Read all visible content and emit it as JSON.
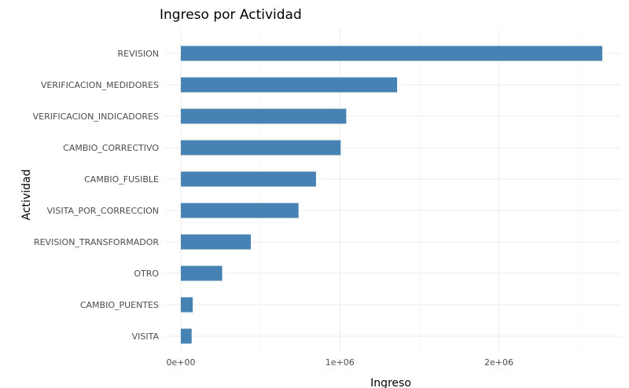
{
  "chart_data": {
    "type": "bar",
    "orientation": "horizontal",
    "title": "Ingreso por Actividad",
    "xlabel": "Ingreso",
    "ylabel": "Actividad",
    "categories": [
      "REVISION",
      "VERIFICACION_MEDIDORES",
      "VERIFICACION_INDICADORES",
      "CAMBIO_CORRECTIVO",
      "CAMBIO_FUSIBLE",
      "VISITA_POR_CORRECCION",
      "REVISION_TRANSFORMADOR",
      "OTRO",
      "CAMBIO_PUENTES",
      "VISITA"
    ],
    "values": [
      2650000,
      1360000,
      1040000,
      1005000,
      850000,
      740000,
      440000,
      260000,
      75000,
      68000
    ],
    "xlim": [
      0,
      2650000
    ],
    "x_ticks": [
      0,
      1000000,
      2000000
    ],
    "x_tick_labels": [
      "0e+00",
      "1e+06",
      "2e+06"
    ],
    "grid": true,
    "bar_color": "#4682B4",
    "grid_color": "#EBEBEB"
  }
}
